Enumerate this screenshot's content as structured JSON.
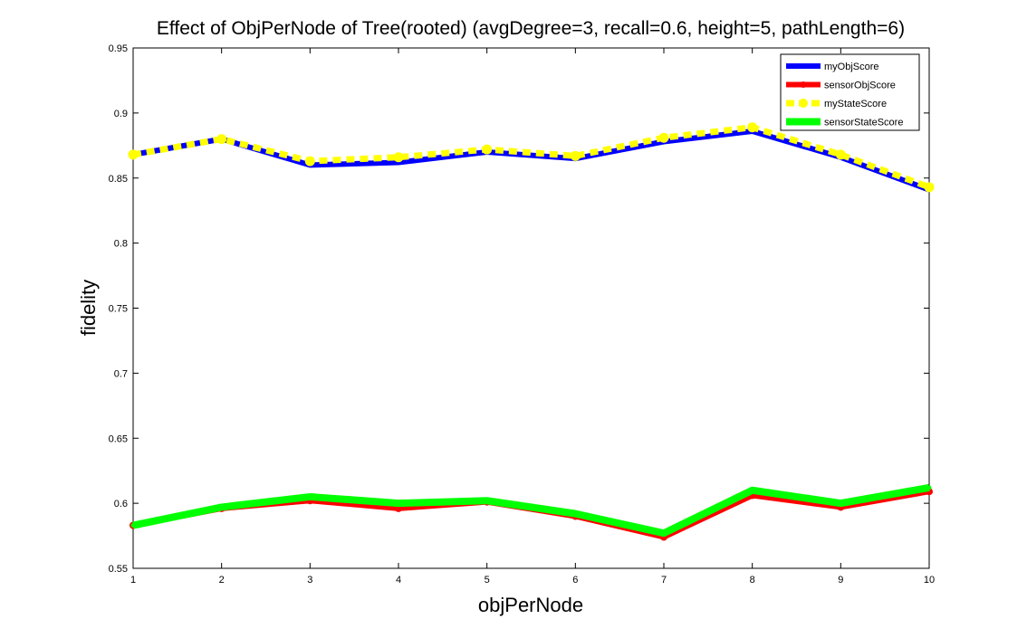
{
  "chart_data": {
    "type": "line",
    "title": "Effect of ObjPerNode of Tree(rooted) (avgDegree=3, recall=0.6, height=5, pathLength=6)",
    "xlabel": "objPerNode",
    "ylabel": "fidelity",
    "x": [
      1,
      2,
      3,
      4,
      5,
      6,
      7,
      8,
      9,
      10
    ],
    "xlim": [
      1,
      10
    ],
    "ylim": [
      0.55,
      0.95
    ],
    "xticks": [
      "1",
      "2",
      "3",
      "4",
      "5",
      "6",
      "7",
      "8",
      "9",
      "10"
    ],
    "yticks": [
      "0.55",
      "0.6",
      "0.65",
      "0.7",
      "0.75",
      "0.8",
      "0.85",
      "0.9",
      "0.95"
    ],
    "grid": false,
    "legend_position": "top-right",
    "series": [
      {
        "name": "myObjScore",
        "color": "#0000ff",
        "style": "solid",
        "values": [
          0.868,
          0.88,
          0.86,
          0.862,
          0.87,
          0.865,
          0.878,
          0.886,
          0.866,
          0.841
        ]
      },
      {
        "name": "sensorObjScore",
        "color": "#ff0000",
        "style": "solid",
        "marker": "dot",
        "values": [
          0.583,
          0.596,
          0.602,
          0.596,
          0.601,
          0.59,
          0.574,
          0.606,
          0.597,
          0.609
        ]
      },
      {
        "name": "myStateScore",
        "color": "#ffff00",
        "style": "dashed",
        "marker": "dot",
        "values": [
          0.868,
          0.88,
          0.863,
          0.866,
          0.872,
          0.867,
          0.881,
          0.889,
          0.868,
          0.843
        ]
      },
      {
        "name": "sensorStateScore",
        "color": "#00ff00",
        "style": "solid",
        "values": [
          0.583,
          0.597,
          0.605,
          0.6,
          0.602,
          0.592,
          0.577,
          0.61,
          0.6,
          0.612
        ]
      }
    ]
  }
}
